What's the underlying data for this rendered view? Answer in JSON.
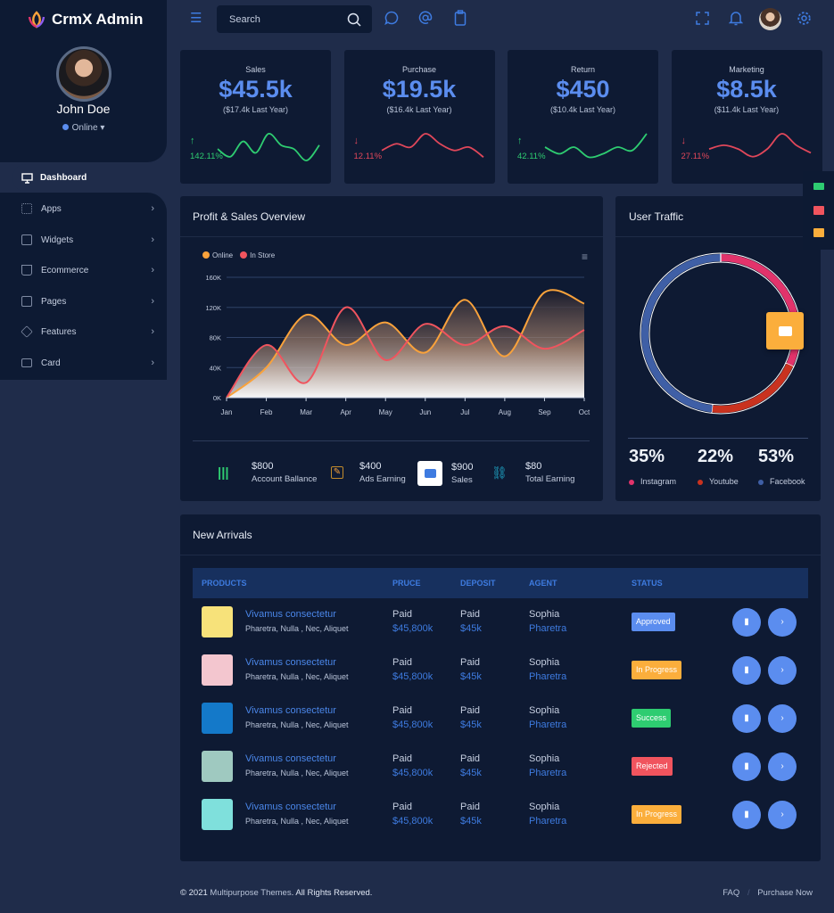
{
  "brand": {
    "name": "CrmX Admin"
  },
  "user": {
    "name": "John Doe",
    "status": "Online"
  },
  "sidebar": {
    "items": [
      {
        "label": "Dashboard",
        "icon": "monitor-icon",
        "active": true
      },
      {
        "label": "Apps",
        "icon": "grid-icon"
      },
      {
        "label": "Widgets",
        "icon": "edit-icon"
      },
      {
        "label": "Ecommerce",
        "icon": "cart-icon"
      },
      {
        "label": "Pages",
        "icon": "cast-icon"
      },
      {
        "label": "Features",
        "icon": "box-icon"
      },
      {
        "label": "Card",
        "icon": "credit-card-icon"
      }
    ]
  },
  "topbar": {
    "search_placeholder": "Search"
  },
  "stats": [
    {
      "title": "Sales",
      "value": "$45.5k",
      "last_year": "($17.4k Last Year)",
      "change": "142.11%",
      "trend": "up",
      "color": "#2ecc71",
      "spark": [
        3,
        1,
        5,
        2,
        7,
        4,
        3,
        0,
        4
      ]
    },
    {
      "title": "Purchase",
      "value": "$19.5k",
      "last_year": "($16.4k Last Year)",
      "change": "12.11%",
      "trend": "down",
      "color": "#e0475a",
      "spark": [
        3,
        5,
        4,
        8,
        5,
        3,
        4,
        1
      ]
    },
    {
      "title": "Return",
      "value": "$450",
      "last_year": "($10.4k Last Year)",
      "change": "42.11%",
      "trend": "up",
      "color": "#2ecc71",
      "spark": [
        4,
        2,
        4,
        1,
        2,
        4,
        3,
        8
      ]
    },
    {
      "title": "Marketing",
      "value": "$8.5k",
      "last_year": "($11.4k Last Year)",
      "change": "27.11%",
      "trend": "down",
      "color": "#e0475a",
      "spark": [
        3,
        4,
        3,
        1,
        3,
        7,
        4,
        2
      ]
    }
  ],
  "overview": {
    "title": "Profit & Sales Overview",
    "summary": [
      {
        "amount": "$800",
        "label": "Account Ballance",
        "icon": "library-icon"
      },
      {
        "amount": "$400",
        "label": "Ads Earning",
        "icon": "edit-icon"
      },
      {
        "amount": "$900",
        "label": "Sales",
        "icon": "chat-icon"
      },
      {
        "amount": "$80",
        "label": "Total Earning",
        "icon": "link-icon"
      }
    ]
  },
  "chart_data": [
    {
      "type": "area",
      "categories": [
        "Jan",
        "Feb",
        "Mar",
        "Apr",
        "May",
        "Jun",
        "Jul",
        "Aug",
        "Sep",
        "Oct"
      ],
      "yticks": [
        "0K",
        "40K",
        "80K",
        "120K",
        "160K"
      ],
      "ylim": [
        0,
        160000
      ],
      "grid": true,
      "legend": "top-left",
      "series": [
        {
          "name": "Online",
          "color": "#f9a23b",
          "values": [
            0,
            40000,
            110000,
            70000,
            100000,
            60000,
            130000,
            55000,
            140000,
            125000
          ]
        },
        {
          "name": "In Store",
          "color": "#f0545e",
          "values": [
            0,
            70000,
            20000,
            120000,
            50000,
            98000,
            70000,
            95000,
            65000,
            90000
          ]
        }
      ]
    },
    {
      "type": "pie",
      "title": "User Traffic",
      "donut": true,
      "slices": [
        {
          "label": "Instagram",
          "value": 35,
          "display": "35%",
          "color": "#e2336b"
        },
        {
          "label": "Youtube",
          "value": 22,
          "display": "22%",
          "color": "#c9321f"
        },
        {
          "label": "Facebook",
          "value": 53,
          "display": "53%",
          "color": "#3f5fa6"
        }
      ]
    }
  ],
  "arrivals": {
    "title": "New Arrivals",
    "headers": [
      "PRODUCTS",
      "PRUCE",
      "DEPOSIT",
      "AGENT",
      "STATUS"
    ],
    "rows": [
      {
        "name": "Vivamus consectetur",
        "sub": "Pharetra, Nulla , Nec, Aliquet",
        "price_label": "Paid",
        "price": "$45,800k",
        "deposit_label": "Paid",
        "deposit": "$45k",
        "agent": "Sophia",
        "agent_sub": "Pharetra",
        "status": "Approved",
        "status_color": "#5b8def",
        "thumb": "#f7e27a"
      },
      {
        "name": "Vivamus consectetur",
        "sub": "Pharetra, Nulla , Nec, Aliquet",
        "price_label": "Paid",
        "price": "$45,800k",
        "deposit_label": "Paid",
        "deposit": "$45k",
        "agent": "Sophia",
        "agent_sub": "Pharetra",
        "status": "In Progress",
        "status_color": "#fbae3c",
        "thumb": "#f3c6cf"
      },
      {
        "name": "Vivamus consectetur",
        "sub": "Pharetra, Nulla , Nec, Aliquet",
        "price_label": "Paid",
        "price": "$45,800k",
        "deposit_label": "Paid",
        "deposit": "$45k",
        "agent": "Sophia",
        "agent_sub": "Pharetra",
        "status": "Success",
        "status_color": "#2ecc71",
        "thumb": "#1479c9"
      },
      {
        "name": "Vivamus consectetur",
        "sub": "Pharetra, Nulla , Nec, Aliquet",
        "price_label": "Paid",
        "price": "$45,800k",
        "deposit_label": "Paid",
        "deposit": "$45k",
        "agent": "Sophia",
        "agent_sub": "Pharetra",
        "status": "Rejected",
        "status_color": "#f0545e",
        "thumb": "#9fc9c0"
      },
      {
        "name": "Vivamus consectetur",
        "sub": "Pharetra, Nulla , Nec, Aliquet",
        "price_label": "Paid",
        "price": "$45,800k",
        "deposit_label": "Paid",
        "deposit": "$45k",
        "agent": "Sophia",
        "agent_sub": "Pharetra",
        "status": "In Progress",
        "status_color": "#fbae3c",
        "thumb": "#7fe0dc"
      }
    ]
  },
  "footer": {
    "year_prefix": "© 2021",
    "company": "Multipurpose Themes",
    "rights": ". All Rights Reserved.",
    "links": [
      "FAQ",
      "Purchase Now"
    ],
    "sep": "/"
  }
}
